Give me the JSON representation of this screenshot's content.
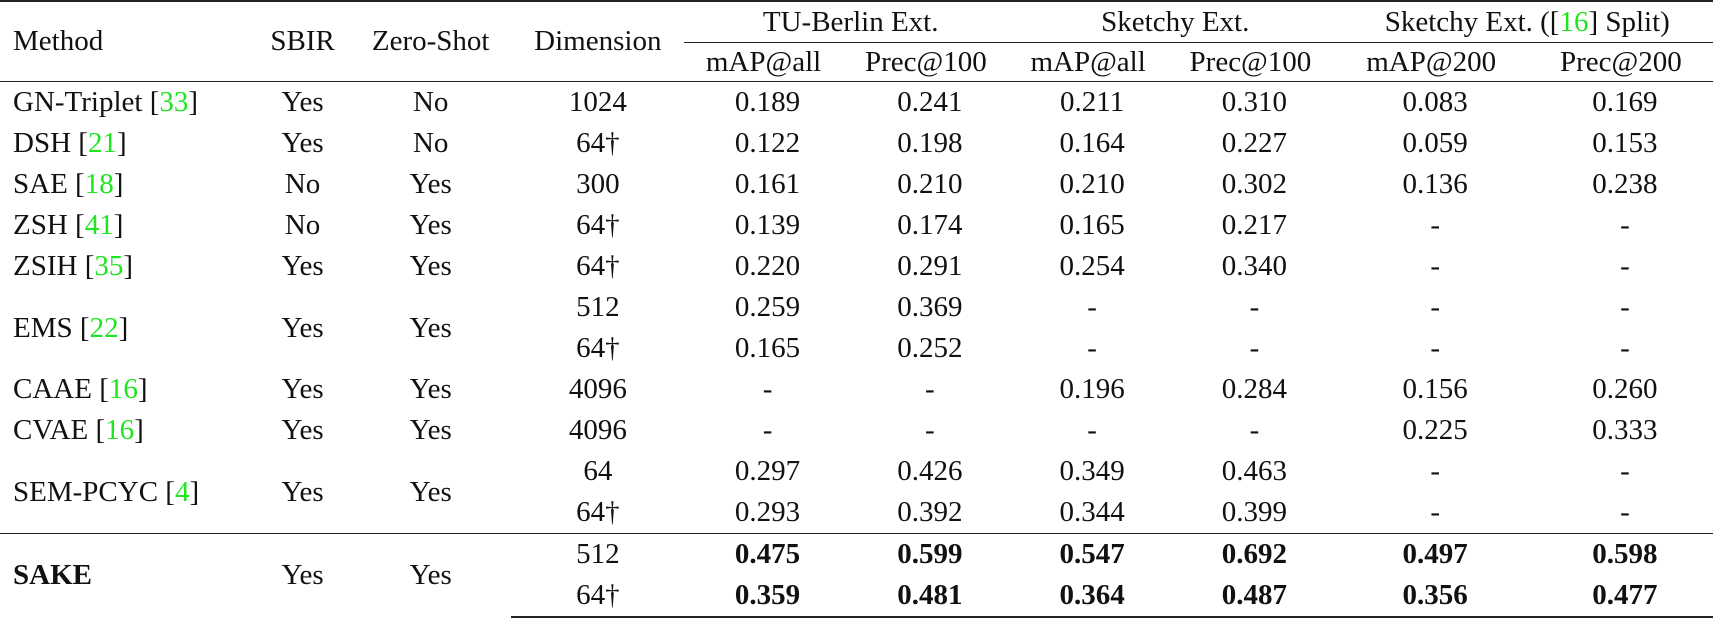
{
  "table": {
    "headers": {
      "method": "Method",
      "sbir": "SBIR",
      "zero_shot": "Zero-Shot",
      "dimension": "Dimension",
      "groups": [
        {
          "label": "TU-Berlin Ext."
        },
        {
          "label": "Sketchy Ext."
        },
        {
          "label_prefix": "Sketchy Ext. ([",
          "cite": "16",
          "label_suffix": "] Split)"
        }
      ],
      "metrics": [
        "mAP@all",
        "Prec@100",
        "mAP@all",
        "Prec@100",
        "mAP@200",
        "Prec@200"
      ]
    },
    "rows": [
      {
        "method": "GN-Triplet",
        "cite": "33",
        "sbir": "Yes",
        "zero_shot": "No",
        "dims": [
          {
            "dim": "1024",
            "values": [
              "0.189",
              "0.241",
              "0.211",
              "0.310",
              "0.083",
              "0.169"
            ]
          }
        ]
      },
      {
        "method": "DSH",
        "cite": "21",
        "sbir": "Yes",
        "zero_shot": "No",
        "dims": [
          {
            "dim": "64†",
            "values": [
              "0.122",
              "0.198",
              "0.164",
              "0.227",
              "0.059",
              "0.153"
            ]
          }
        ]
      },
      {
        "method": "SAE",
        "cite": "18",
        "sbir": "No",
        "zero_shot": "Yes",
        "dims": [
          {
            "dim": "300",
            "values": [
              "0.161",
              "0.210",
              "0.210",
              "0.302",
              "0.136",
              "0.238"
            ]
          }
        ]
      },
      {
        "method": "ZSH",
        "cite": "41",
        "sbir": "No",
        "zero_shot": "Yes",
        "dims": [
          {
            "dim": "64†",
            "values": [
              "0.139",
              "0.174",
              "0.165",
              "0.217",
              "-",
              "-"
            ]
          }
        ]
      },
      {
        "method": "ZSIH",
        "cite": "35",
        "sbir": "Yes",
        "zero_shot": "Yes",
        "dims": [
          {
            "dim": "64†",
            "values": [
              "0.220",
              "0.291",
              "0.254",
              "0.340",
              "-",
              "-"
            ]
          }
        ]
      },
      {
        "method": "EMS",
        "cite": "22",
        "sbir": "Yes",
        "zero_shot": "Yes",
        "dims": [
          {
            "dim": "512",
            "values": [
              "0.259",
              "0.369",
              "-",
              "-",
              "-",
              "-"
            ]
          },
          {
            "dim": "64†",
            "values": [
              "0.165",
              "0.252",
              "-",
              "-",
              "-",
              "-"
            ]
          }
        ]
      },
      {
        "method": "CAAE",
        "cite": "16",
        "sbir": "Yes",
        "zero_shot": "Yes",
        "dims": [
          {
            "dim": "4096",
            "values": [
              "-",
              "-",
              "0.196",
              "0.284",
              "0.156",
              "0.260"
            ]
          }
        ]
      },
      {
        "method": "CVAE",
        "cite": "16",
        "sbir": "Yes",
        "zero_shot": "Yes",
        "dims": [
          {
            "dim": "4096",
            "values": [
              "-",
              "-",
              "-",
              "-",
              "0.225",
              "0.333"
            ]
          }
        ]
      },
      {
        "method": "SEM-PCYC",
        "cite": "4",
        "sbir": "Yes",
        "zero_shot": "Yes",
        "dims": [
          {
            "dim": "64",
            "values": [
              "0.297",
              "0.426",
              "0.349",
              "0.463",
              "-",
              "-"
            ]
          },
          {
            "dim": "64†",
            "values": [
              "0.293",
              "0.392",
              "0.344",
              "0.399",
              "-",
              "-"
            ]
          }
        ]
      },
      {
        "method": "SAKE",
        "cite": "",
        "sbir": "Yes",
        "zero_shot": "Yes",
        "dims": [
          {
            "dim": "512",
            "values": [
              "0.475",
              "0.599",
              "0.547",
              "0.692",
              "0.497",
              "0.598"
            ]
          },
          {
            "dim": "64†",
            "values": [
              "0.359",
              "0.481",
              "0.364",
              "0.487",
              "0.356",
              "0.477"
            ]
          }
        ]
      }
    ]
  },
  "colors": {
    "citation": "#1ee61e",
    "text": "#111111",
    "rule": "#222222"
  }
}
